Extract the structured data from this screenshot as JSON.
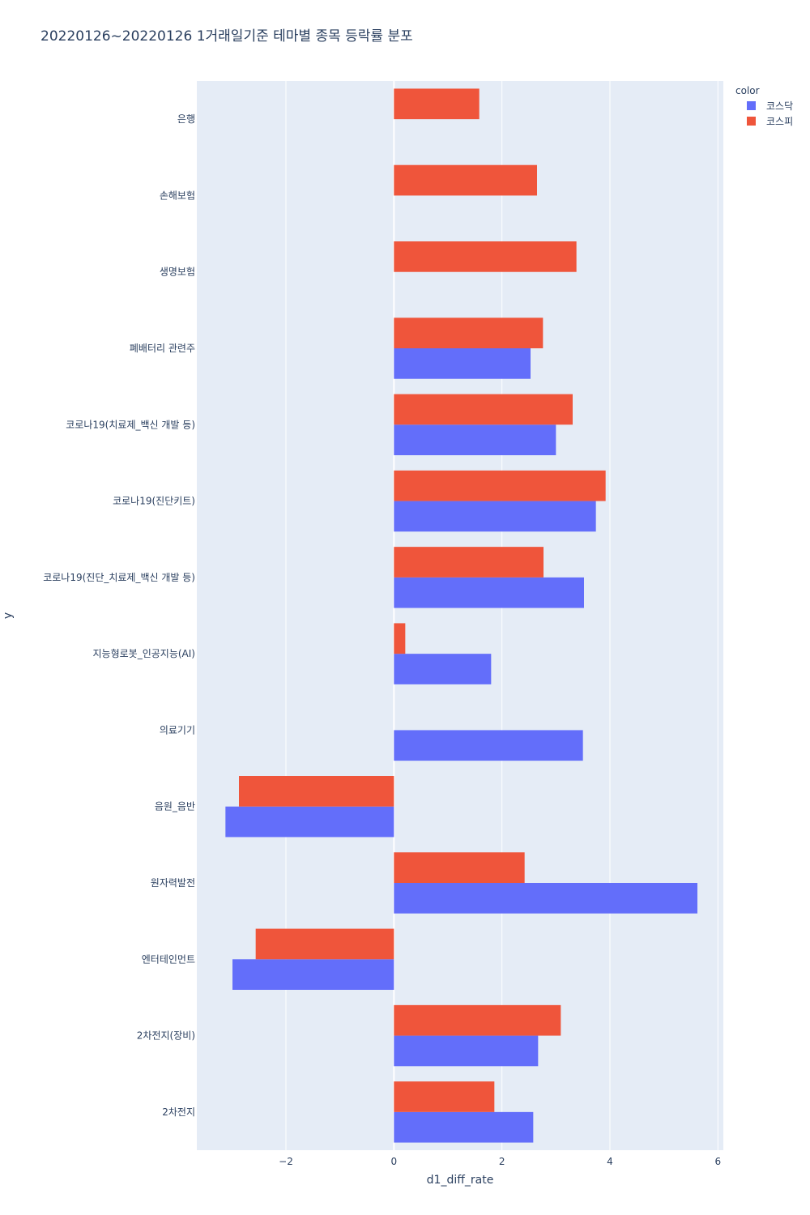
{
  "chart_data": {
    "type": "bar",
    "orientation": "horizontal",
    "title": "20220126~20220126 1거래일기준 테마별 종목 등락률 분포",
    "xlabel": "d1_diff_rate",
    "ylabel": "y",
    "xlim": [
      -3.65,
      6.1
    ],
    "xticks": [
      -2,
      0,
      2,
      4,
      6
    ],
    "xtick_labels": [
      "−2",
      "0",
      "2",
      "4",
      "6"
    ],
    "categories": [
      "2차전지",
      "2차전지(장비)",
      "엔터테인먼트",
      "원자력발전",
      "음원_음반",
      "의료기기",
      "지능형로봇_인공지능(AI)",
      "코로나19(진단_치료제_백신 개발 등)",
      "코로나19(진단키트)",
      "코로나19(치료제_백신 개발 등)",
      "폐배터리 관련주",
      "생명보험",
      "손해보험",
      "은행"
    ],
    "series": [
      {
        "name": "코스닥",
        "color": "#636efa",
        "values": [
          2.58,
          2.67,
          -2.99,
          5.62,
          -3.12,
          3.5,
          1.8,
          3.52,
          3.74,
          3.0,
          2.53,
          null,
          null,
          null
        ]
      },
      {
        "name": "코스피",
        "color": "#ef553b",
        "values": [
          1.86,
          3.09,
          -2.56,
          2.42,
          -2.87,
          null,
          0.21,
          2.77,
          3.92,
          3.31,
          2.76,
          3.38,
          2.65,
          1.58
        ]
      }
    ],
    "legend_title": "color",
    "legend_position": "top-right",
    "grid": true
  }
}
